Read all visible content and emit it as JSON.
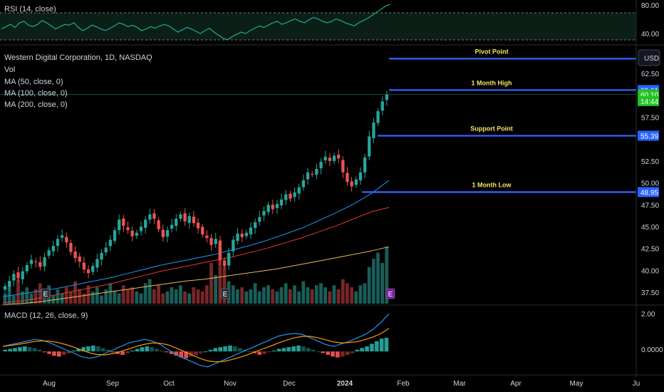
{
  "header": {
    "rsi_label": "RSI (14, close)",
    "title": "Western Digital Corporation, 1D, NASDAQ",
    "indicators": [
      "Vol",
      "MA (50, close, 0)",
      "MA (100, close, 0)",
      "MA (200, close, 0)"
    ],
    "macd_label": "MACD (12, 26, close, 9)",
    "currency": "USD"
  },
  "events": [
    "E",
    "E",
    "E"
  ],
  "chart_data": [
    {
      "type": "line",
      "name": "rsi",
      "levels": [
        80,
        40
      ],
      "level_labels": [
        "80.00",
        "40.00"
      ],
      "values": [
        52,
        55,
        58,
        54,
        60,
        62,
        57,
        55,
        58,
        63,
        60,
        56,
        52,
        55,
        58,
        57,
        60,
        54,
        50,
        53,
        57,
        55,
        52,
        50,
        53,
        56,
        60,
        58,
        55,
        57,
        54,
        50,
        52,
        55,
        53,
        56,
        58,
        56,
        52,
        48,
        51,
        54,
        52,
        49,
        46,
        50,
        53,
        48,
        44,
        40,
        38,
        42,
        45,
        48,
        46,
        50,
        53,
        56,
        54,
        57,
        60,
        62,
        58,
        60,
        63,
        65,
        62,
        60,
        64,
        67,
        65,
        62,
        60,
        62,
        65,
        63,
        60,
        58,
        56,
        60,
        63,
        66,
        70,
        74,
        78,
        82,
        84
      ],
      "color": "#26a69a"
    },
    {
      "type": "candlestick",
      "name": "price",
      "y_ticks": [
        "62.50",
        "57.50",
        "52.50",
        "50.00",
        "47.50",
        "45.00",
        "42.50",
        "40.00",
        "37.50"
      ],
      "y_tick_values": [
        62.5,
        57.5,
        52.5,
        50,
        47.5,
        45,
        42.5,
        40,
        37.5
      ],
      "ylim": [
        36.2,
        65.2
      ],
      "x_tick_labels": [
        "Aug",
        "Sep",
        "Oct",
        "Nov",
        "Dec",
        "2024",
        "Feb",
        "Mar",
        "Apr",
        "May",
        "Ju"
      ],
      "closes": [
        38.2,
        38.8,
        39.6,
        39.1,
        39.9,
        40.6,
        41.2,
        41.0,
        40.4,
        41.5,
        42.3,
        42.8,
        43.6,
        44.0,
        43.2,
        42.1,
        41.4,
        41.0,
        40.1,
        39.7,
        40.5,
        41.3,
        42.0,
        42.6,
        43.5,
        44.6,
        45.8,
        45.1,
        44.6,
        43.9,
        44.3,
        45.0,
        45.8,
        46.4,
        45.9,
        44.7,
        43.8,
        44.6,
        45.2,
        45.9,
        46.4,
        45.6,
        46.2,
        45.4,
        44.8,
        44.1,
        43.7,
        42.9,
        43.6,
        41.2,
        40.5,
        42.0,
        43.5,
        44.2,
        43.8,
        44.3,
        44.9,
        45.5,
        46.1,
        46.8,
        47.5,
        47.0,
        47.6,
        48.1,
        48.7,
        48.2,
        48.9,
        49.5,
        50.3,
        51.2,
        51.0,
        51.6,
        52.4,
        53.0,
        52.5,
        53.1,
        52.8,
        51.2,
        50.1,
        49.6,
        50.4,
        51.2,
        52.9,
        55.3,
        56.9,
        58.2,
        59.3,
        60.1
      ],
      "ma50": [
        37.0,
        37.3,
        37.6,
        37.9,
        38.3,
        38.7,
        39.1,
        39.6,
        40.1,
        40.6,
        41.0,
        41.4,
        41.8,
        42.3,
        42.8,
        43.4,
        44.1,
        44.8,
        45.7,
        46.6,
        47.6,
        48.8,
        50.3
      ],
      "ma100": [
        36.3,
        36.5,
        36.8,
        37.2,
        37.6,
        38.0,
        38.4,
        38.9,
        39.4,
        39.9,
        40.3,
        40.7,
        41.1,
        41.5,
        42.0,
        42.5,
        43.1,
        43.7,
        44.4,
        45.1,
        45.9,
        46.7,
        47.2
      ],
      "ma200": [
        36.1,
        36.2,
        36.4,
        36.7,
        37.0,
        37.3,
        37.6,
        37.9,
        38.2,
        38.5,
        38.8,
        39.0,
        39.3,
        39.6,
        39.9,
        40.2,
        40.6,
        41.0,
        41.4,
        41.8,
        42.2,
        42.7
      ],
      "volume": [
        5,
        9,
        4,
        12,
        6,
        8,
        5,
        7,
        10,
        6,
        9,
        4,
        7,
        5,
        8,
        6,
        11,
        7,
        5,
        9,
        6,
        8,
        4,
        7,
        10,
        6,
        5,
        9,
        7,
        8,
        6,
        5,
        10,
        12,
        7,
        9,
        5,
        6,
        8,
        7,
        9,
        6,
        5,
        8,
        7,
        6,
        9,
        20,
        14,
        28,
        18,
        11,
        9,
        7,
        8,
        6,
        7,
        10,
        6,
        8,
        9,
        7,
        6,
        8,
        10,
        7,
        9,
        6,
        11,
        8,
        7,
        9,
        10,
        8,
        6,
        9,
        7,
        12,
        10,
        8,
        6,
        9,
        10,
        18,
        22,
        25,
        20,
        28
      ],
      "levels": [
        {
          "label": "Pivot Point",
          "value": 64.2
        },
        {
          "label": "1 Month High",
          "value": 60.61
        },
        {
          "label": "Support Point",
          "value": 55.39
        },
        {
          "label": "1 Month Low",
          "value": 48.95
        }
      ],
      "price_tags": [
        {
          "text": "60.61",
          "value": 60.61,
          "color": "#2962ff"
        },
        {
          "text": "60.10",
          "value": 60.1,
          "color": "#22c222"
        },
        {
          "text": "14:44",
          "value": 59.35,
          "color": "#22c222"
        },
        {
          "text": "55.39",
          "value": 55.39,
          "color": "#2962ff"
        },
        {
          "text": "48.95",
          "value": 48.95,
          "color": "#2962ff"
        }
      ],
      "last_price": 60.1
    },
    {
      "type": "bar",
      "name": "macd",
      "y_ticks": [
        "2.00",
        "0.0000"
      ],
      "y_tick_values": [
        2.0,
        0.0
      ],
      "ylim": [
        -1.2,
        2.5
      ],
      "histogram": [
        0.1,
        0.15,
        0.2,
        0.25,
        0.3,
        0.25,
        0.2,
        0.1,
        -0.05,
        -0.15,
        -0.25,
        -0.3,
        -0.2,
        -0.1,
        0.05,
        0.15,
        0.25,
        0.3,
        0.35,
        0.3,
        0.2,
        0.1,
        -0.05,
        -0.15,
        -0.2,
        -0.1,
        0.05,
        0.15,
        0.25,
        0.3,
        0.25,
        0.15,
        0.05,
        -0.05,
        -0.15,
        -0.25,
        -0.35,
        -0.4,
        -0.3,
        -0.2,
        -0.1,
        0.0,
        0.1,
        0.2,
        0.25,
        0.3,
        0.35,
        0.3,
        0.2,
        0.1,
        0.0,
        -0.1,
        -0.2,
        -0.15,
        -0.05,
        0.05,
        0.15,
        0.2,
        0.25,
        0.3,
        0.35,
        0.3,
        0.2,
        0.1,
        0.0,
        -0.1,
        -0.2,
        -0.3,
        -0.35,
        -0.3,
        -0.2,
        -0.1,
        0.1,
        0.2,
        0.3,
        0.45,
        0.6,
        0.75,
        0.8
      ],
      "macd": [
        0.3,
        0.4,
        0.5,
        0.6,
        0.7,
        0.65,
        0.5,
        0.3,
        0.1,
        -0.1,
        -0.3,
        -0.4,
        -0.3,
        -0.1,
        0.1,
        0.3,
        0.5,
        0.6,
        0.7,
        0.6,
        0.4,
        0.1,
        -0.2,
        -0.4,
        -0.6,
        -0.8,
        -0.9,
        -0.7,
        -0.5,
        -0.3,
        -0.1,
        0.1,
        0.3,
        0.5,
        0.7,
        0.9,
        1.0,
        1.05,
        1.0,
        0.8,
        0.6,
        0.4,
        0.3,
        0.45,
        0.6,
        0.8,
        1.0,
        1.3,
        1.7,
        2.2
      ],
      "signal": [
        0.3,
        0.35,
        0.42,
        0.5,
        0.58,
        0.62,
        0.6,
        0.52,
        0.4,
        0.25,
        0.08,
        -0.08,
        -0.18,
        -0.2,
        -0.12,
        0.0,
        0.15,
        0.3,
        0.42,
        0.5,
        0.48,
        0.38,
        0.2,
        0.0,
        -0.2,
        -0.4,
        -0.55,
        -0.6,
        -0.58,
        -0.48,
        -0.35,
        -0.2,
        -0.02,
        0.15,
        0.32,
        0.5,
        0.66,
        0.8,
        0.88,
        0.88,
        0.8,
        0.68,
        0.55,
        0.5,
        0.52,
        0.58,
        0.7,
        0.85,
        1.05,
        1.35
      ],
      "colors": {
        "macd": "#2196f3",
        "signal": "#ff9800",
        "up": "#26a69a",
        "down": "#ef5350"
      }
    }
  ]
}
